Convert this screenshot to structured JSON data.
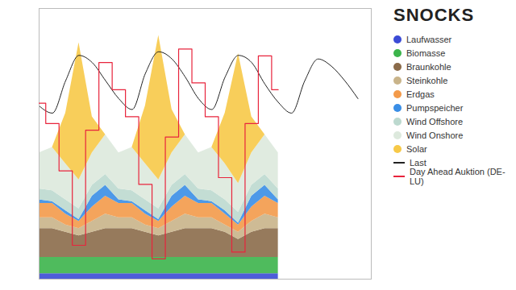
{
  "chart_data": {
    "type": "area",
    "stacked": true,
    "watermark": "SNOCKS",
    "legend": "right",
    "tick_labels": false,
    "grid": false,
    "x": [
      0,
      4,
      8,
      12,
      16,
      20,
      24,
      28,
      32,
      36,
      40,
      44,
      48,
      52,
      56,
      60,
      64,
      68,
      72,
      76,
      80,
      84,
      88,
      92,
      96
    ],
    "xlim": [
      0,
      100
    ],
    "ylim": [
      0,
      75
    ],
    "y2lim": [
      -20,
      180
    ],
    "series": [
      {
        "name": "Laufwasser",
        "color": "#3b4bd6",
        "values": [
          1.5,
          1.5,
          1.5,
          1.5,
          1.5,
          1.5,
          1.5,
          1.5,
          1.5,
          1.5,
          1.5,
          1.5,
          1.5,
          1.5,
          1.5,
          1.5,
          1.5,
          1.5,
          1.5,
          null,
          null,
          null,
          null,
          null,
          null
        ]
      },
      {
        "name": "Biomasse",
        "color": "#3cb44b",
        "values": [
          4.5,
          4.5,
          4.5,
          4.5,
          4.5,
          4.5,
          4.5,
          4.5,
          4.5,
          4.5,
          4.5,
          4.5,
          4.5,
          4.5,
          4.5,
          4.5,
          4.5,
          4.5,
          4.5,
          null,
          null,
          null,
          null,
          null,
          null
        ]
      },
      {
        "name": "Braunkohle",
        "color": "#8b6b4a",
        "values": [
          8,
          8,
          7,
          6,
          7,
          8,
          8,
          8,
          7,
          6,
          7,
          8,
          8,
          8,
          7,
          5,
          7,
          8,
          8,
          null,
          null,
          null,
          null,
          null,
          null
        ]
      },
      {
        "name": "Steinkohle",
        "color": "#c9b48a",
        "values": [
          3,
          3,
          2,
          2,
          3,
          4,
          3,
          3,
          2,
          2,
          3,
          4,
          3,
          3,
          2,
          2,
          3,
          4,
          3,
          null,
          null,
          null,
          null,
          null,
          null
        ]
      },
      {
        "name": "Erdgas",
        "color": "#f39a4a",
        "values": [
          4,
          4,
          3,
          2,
          4,
          5,
          4,
          4,
          3,
          2,
          4,
          5,
          4,
          4,
          3,
          2,
          4,
          5,
          4,
          null,
          null,
          null,
          null,
          null,
          null
        ]
      },
      {
        "name": "Pumpspeicher",
        "color": "#3a8ee6",
        "values": [
          1,
          0.5,
          1,
          0.5,
          3,
          3,
          1,
          0.5,
          1,
          0.5,
          3,
          3,
          1,
          0.5,
          1,
          0.5,
          3,
          3,
          1,
          null,
          null,
          null,
          null,
          null,
          null
        ]
      },
      {
        "name": "Wind Offshore",
        "color": "#bcd9cf",
        "values": [
          3,
          3,
          3,
          3,
          3,
          3,
          3,
          3,
          3,
          3,
          3,
          3,
          3,
          3,
          3,
          3,
          3,
          3,
          3,
          null,
          null,
          null,
          null,
          null,
          null
        ]
      },
      {
        "name": "Wind Onshore",
        "color": "#dde9dd",
        "values": [
          10,
          12,
          10,
          8,
          9,
          11,
          10,
          12,
          10,
          8,
          9,
          11,
          10,
          12,
          10,
          8,
          9,
          11,
          10,
          null,
          null,
          null,
          null,
          null,
          null
        ]
      },
      {
        "name": "Solar",
        "color": "#f7c948",
        "values": [
          0,
          0,
          14,
          38,
          10,
          0,
          0,
          0,
          16,
          40,
          12,
          0,
          0,
          0,
          14,
          36,
          10,
          0,
          0,
          null,
          null,
          null,
          null,
          null,
          null
        ]
      },
      {
        "name": "Last",
        "type": "line",
        "color": "#222222",
        "values": [
          48,
          46,
          55,
          62,
          60,
          55,
          50,
          47,
          57,
          63,
          61,
          56,
          50,
          47,
          56,
          62,
          60,
          54,
          49,
          46,
          55,
          61,
          59,
          55,
          50
        ]
      },
      {
        "name": "Day Ahead Auktion (DE-LU)",
        "type": "line",
        "axis": "y2",
        "color": "#e8243c",
        "line_style": "step",
        "values": [
          110,
          95,
          60,
          5,
          90,
          140,
          120,
          100,
          50,
          -5,
          85,
          150,
          125,
          100,
          55,
          0,
          95,
          145,
          120,
          null,
          null,
          null,
          null,
          null,
          null
        ]
      }
    ]
  }
}
